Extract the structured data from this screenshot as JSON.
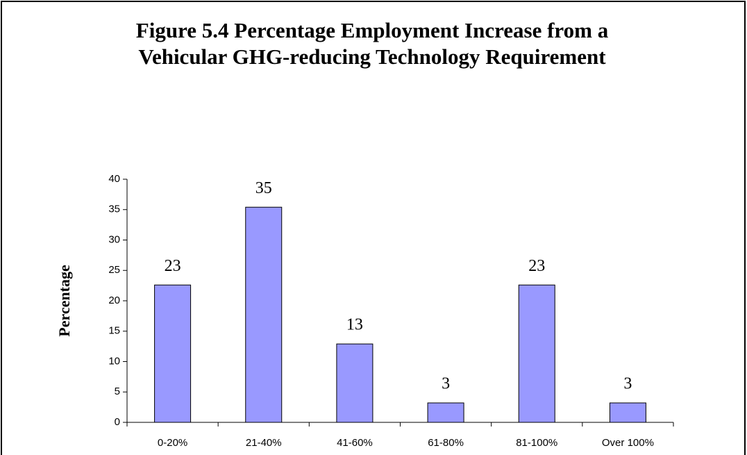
{
  "chart_data": {
    "type": "bar",
    "title": [
      "Figure 5.4 Percentage Employment Increase from a",
      "Vehicular GHG-reducing Technology Requirement"
    ],
    "y_label": "Percentage",
    "categories": [
      "0-20%",
      "21-40%",
      "41-60%",
      "61-80%",
      "81-100%",
      "Over 100%"
    ],
    "values": [
      22.6,
      35.4,
      12.9,
      3.2,
      22.6,
      3.2
    ],
    "value_labels": [
      "23",
      "35",
      "13",
      "3",
      "23",
      "3"
    ],
    "color": "#9999ff",
    "ylim": [
      0,
      40
    ],
    "yticks": [
      0,
      5,
      10,
      15,
      20,
      25,
      30,
      35,
      40
    ],
    "grid": false
  }
}
